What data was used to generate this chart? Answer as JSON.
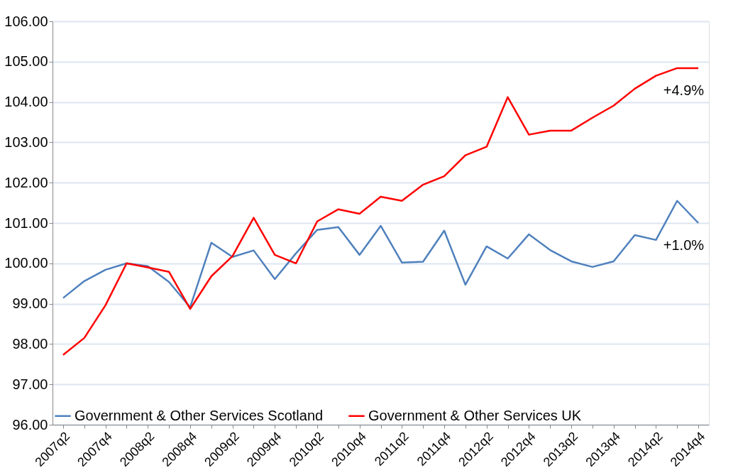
{
  "chart_data": {
    "type": "line",
    "categories": [
      "2007q2",
      null,
      "2007q4",
      null,
      "2008q2",
      null,
      "2008q4",
      null,
      "2009q2",
      null,
      "2009q4",
      null,
      "2010q2",
      null,
      "2010q4",
      null,
      "2011q2",
      null,
      "2011q4",
      null,
      "2012q2",
      null,
      "2012q4",
      null,
      "2013q2",
      null,
      "2013q4",
      null,
      "2014q2",
      null,
      "2014q4"
    ],
    "series": [
      {
        "name": "Government & Other Services Scotland",
        "color": "#4f81bd",
        "values": [
          99.14,
          99.56,
          99.84,
          100.0,
          99.93,
          99.54,
          98.91,
          100.51,
          100.16,
          100.32,
          99.61,
          100.25,
          100.83,
          100.9,
          100.21,
          100.93,
          100.02,
          100.04,
          100.81,
          99.47,
          100.42,
          100.12,
          100.72,
          100.33,
          100.05,
          99.91,
          100.05,
          100.7,
          100.58,
          101.55,
          101.0
        ]
      },
      {
        "name": "Government & Other Services UK",
        "color": "#ff0000",
        "values": [
          97.73,
          98.15,
          98.96,
          100.0,
          99.9,
          99.79,
          98.87,
          99.68,
          100.18,
          101.13,
          100.21,
          100.0,
          101.04,
          101.34,
          101.23,
          101.65,
          101.55,
          101.95,
          102.16,
          102.68,
          102.89,
          104.12,
          103.19,
          103.29,
          103.29,
          103.61,
          103.91,
          104.33,
          104.65,
          104.84,
          104.84
        ]
      }
    ],
    "ylim": [
      96,
      106
    ],
    "yticks": [
      {
        "value": 96,
        "label": "96.00"
      },
      {
        "value": 97,
        "label": "97.00"
      },
      {
        "value": 98,
        "label": "98.00"
      },
      {
        "value": 99,
        "label": "99.00"
      },
      {
        "value": 100,
        "label": "100.00"
      },
      {
        "value": 101,
        "label": "101.00"
      },
      {
        "value": 102,
        "label": "102.00"
      },
      {
        "value": 103,
        "label": "103.00"
      },
      {
        "value": 104,
        "label": "104.00"
      },
      {
        "value": 105,
        "label": "105.00"
      },
      {
        "value": 106,
        "label": "106.00"
      }
    ],
    "grid": "y",
    "legend": "bottom",
    "marker": "none",
    "line_style": "solid",
    "annotations": [
      "+4.9%",
      "+1.0%"
    ]
  }
}
